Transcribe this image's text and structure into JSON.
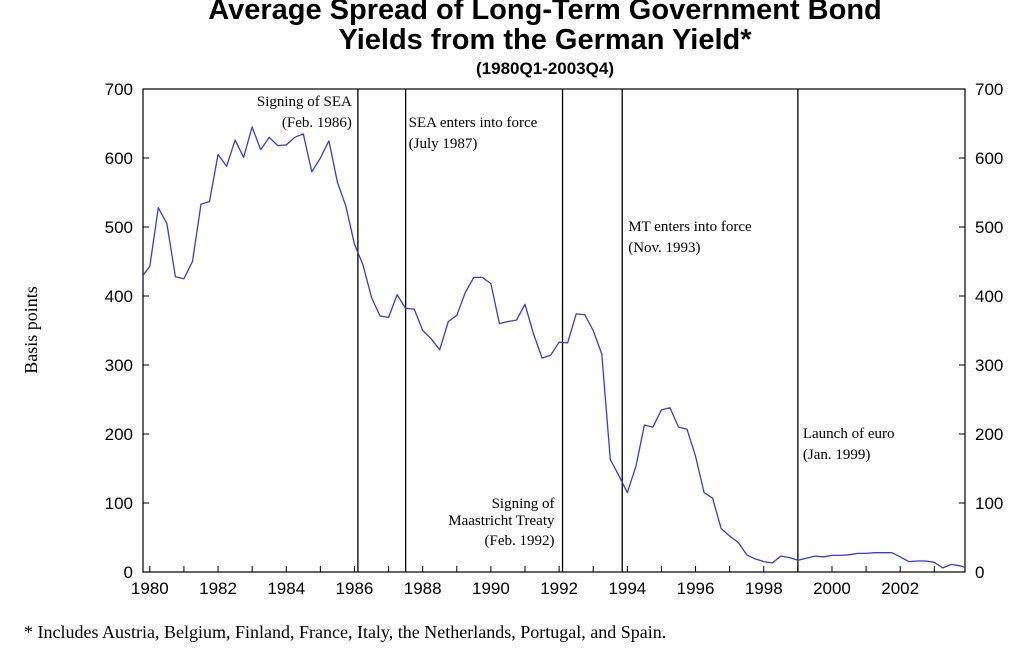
{
  "chart_data": {
    "type": "line",
    "title_line1": "Average Spread of Long-Term Government Bond",
    "title_line2": "Yields from the German Yield*",
    "subtitle": "(1980Q1-2003Q4)",
    "ylabel": "Basis points",
    "xlim": [
      1979.8,
      2003.9
    ],
    "ylim": [
      0,
      700
    ],
    "y_ticks": [
      0,
      100,
      200,
      300,
      400,
      500,
      600,
      700
    ],
    "x_ticks": [
      1980,
      1982,
      1984,
      1986,
      1988,
      1990,
      1992,
      1994,
      1996,
      1998,
      2000,
      2002
    ],
    "footnote": "* Includes Austria, Belgium, Finland, France, Italy, the Netherlands, Portugal, and Spain.",
    "series": [
      {
        "color": "#3a3ad8",
        "points": [
          [
            1979.8,
            430
          ],
          [
            1980.0,
            443
          ],
          [
            1980.25,
            528
          ],
          [
            1980.5,
            505
          ],
          [
            1980.75,
            428
          ],
          [
            1981.0,
            425
          ],
          [
            1981.25,
            450
          ],
          [
            1981.5,
            533
          ],
          [
            1981.75,
            537
          ],
          [
            1982.0,
            605
          ],
          [
            1982.25,
            588
          ],
          [
            1982.5,
            626
          ],
          [
            1982.75,
            601
          ],
          [
            1983.0,
            645
          ],
          [
            1983.25,
            612
          ],
          [
            1983.5,
            630
          ],
          [
            1983.75,
            618
          ],
          [
            1984.0,
            619
          ],
          [
            1984.25,
            630
          ],
          [
            1984.5,
            635
          ],
          [
            1984.75,
            580
          ],
          [
            1985.0,
            600
          ],
          [
            1985.25,
            625
          ],
          [
            1985.5,
            565
          ],
          [
            1985.75,
            530
          ],
          [
            1986.0,
            475
          ],
          [
            1986.25,
            445
          ],
          [
            1986.5,
            398
          ],
          [
            1986.75,
            371
          ],
          [
            1987.0,
            369
          ],
          [
            1987.25,
            402
          ],
          [
            1987.5,
            382
          ],
          [
            1987.75,
            381
          ],
          [
            1988.0,
            350
          ],
          [
            1988.25,
            338
          ],
          [
            1988.5,
            322
          ],
          [
            1988.75,
            363
          ],
          [
            1989.0,
            372
          ],
          [
            1989.25,
            405
          ],
          [
            1989.5,
            427
          ],
          [
            1989.75,
            427
          ],
          [
            1990.0,
            418
          ],
          [
            1990.25,
            360
          ],
          [
            1990.5,
            363
          ],
          [
            1990.75,
            365
          ],
          [
            1991.0,
            388
          ],
          [
            1991.25,
            345
          ],
          [
            1991.5,
            310
          ],
          [
            1991.75,
            314
          ],
          [
            1992.0,
            333
          ],
          [
            1992.25,
            332
          ],
          [
            1992.5,
            374
          ],
          [
            1992.75,
            373
          ],
          [
            1993.0,
            350
          ],
          [
            1993.25,
            316
          ],
          [
            1993.5,
            163
          ],
          [
            1993.75,
            140
          ],
          [
            1994.0,
            115
          ],
          [
            1994.25,
            153
          ],
          [
            1994.5,
            213
          ],
          [
            1994.75,
            210
          ],
          [
            1995.0,
            235
          ],
          [
            1995.25,
            238
          ],
          [
            1995.5,
            210
          ],
          [
            1995.75,
            207
          ],
          [
            1996.0,
            168
          ],
          [
            1996.25,
            115
          ],
          [
            1996.5,
            107
          ],
          [
            1996.75,
            63
          ],
          [
            1997.0,
            52
          ],
          [
            1997.25,
            43
          ],
          [
            1997.5,
            25
          ],
          [
            1997.75,
            19
          ],
          [
            1998.0,
            15
          ],
          [
            1998.25,
            13
          ],
          [
            1998.5,
            23
          ],
          [
            1998.75,
            21
          ],
          [
            1999.0,
            17
          ],
          [
            1999.25,
            20
          ],
          [
            1999.5,
            23
          ],
          [
            1999.75,
            22
          ],
          [
            2000.0,
            24
          ],
          [
            2000.25,
            24
          ],
          [
            2000.5,
            25
          ],
          [
            2000.75,
            27
          ],
          [
            2001.0,
            27
          ],
          [
            2001.25,
            28
          ],
          [
            2001.5,
            28
          ],
          [
            2001.75,
            28
          ],
          [
            2002.0,
            22
          ],
          [
            2002.25,
            15
          ],
          [
            2002.5,
            16
          ],
          [
            2002.75,
            16
          ],
          [
            2003.0,
            14
          ],
          [
            2003.25,
            6
          ],
          [
            2003.5,
            11
          ],
          [
            2003.75,
            9
          ],
          [
            2003.9,
            7
          ]
        ]
      }
    ],
    "events": [
      {
        "x": 1986.1,
        "lines": [
          "Signing of SEA",
          "(Feb. 1986)"
        ],
        "position": "top-left"
      },
      {
        "x": 1987.5,
        "lines": [
          "SEA enters into force",
          "(July 1987)"
        ],
        "position": "top-right"
      },
      {
        "x": 1992.1,
        "lines": [
          "Signing of",
          "Maastricht Treaty",
          "(Feb. 1992)"
        ],
        "position": "bottom-left"
      },
      {
        "x": 1993.85,
        "lines": [
          "MT enters into force",
          "(Nov. 1993)"
        ],
        "position": "mid-right"
      },
      {
        "x": 1999.0,
        "lines": [
          "Launch of euro",
          "(Jan. 1999)"
        ],
        "position": "mid-right"
      }
    ]
  }
}
